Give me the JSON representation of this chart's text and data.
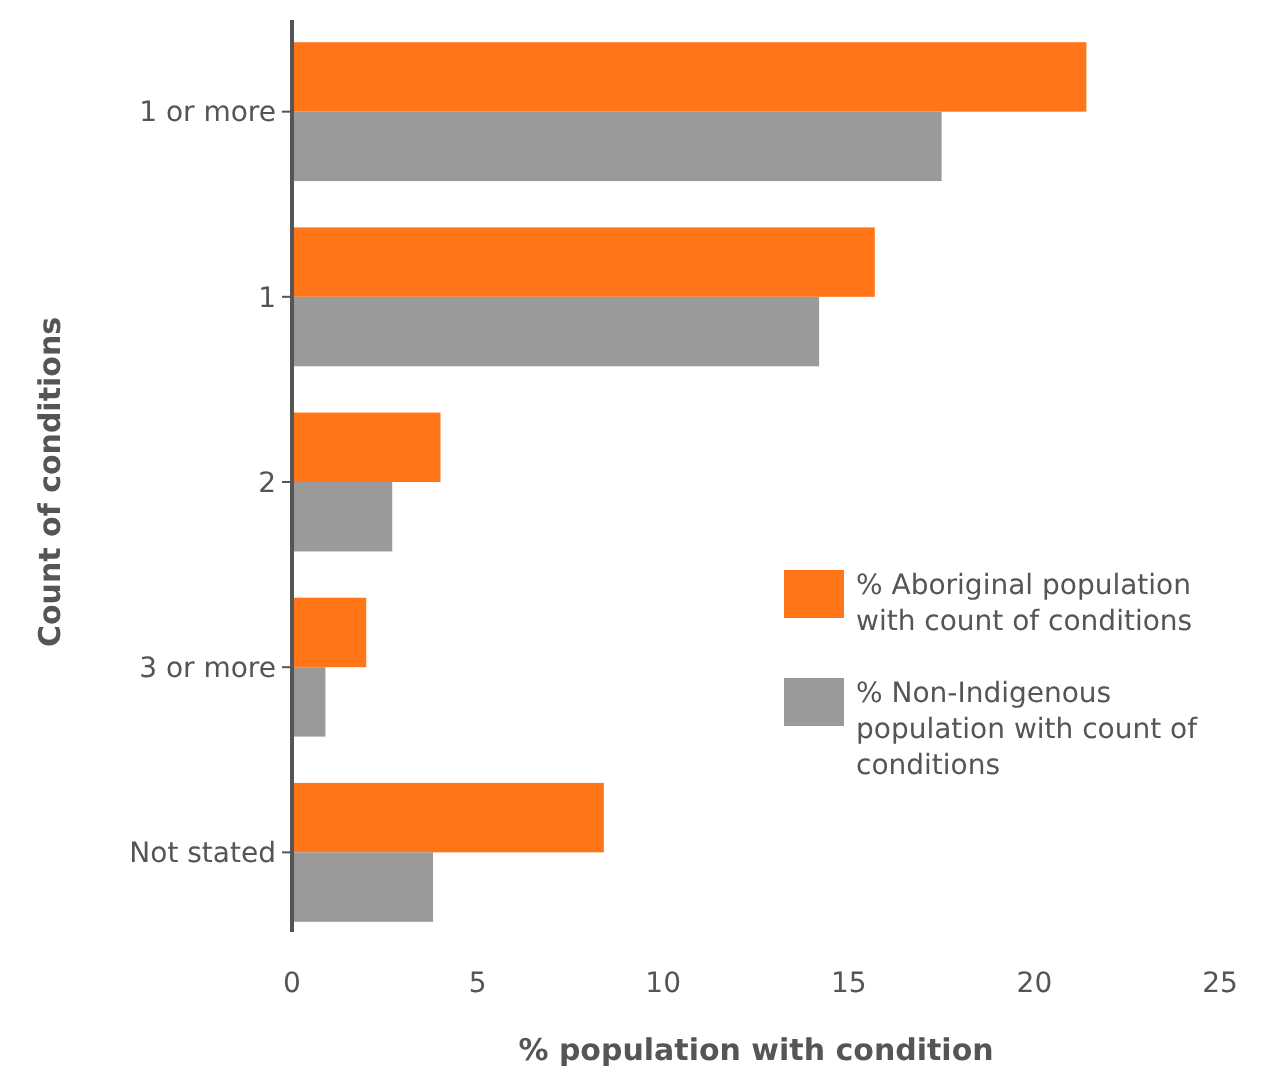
{
  "chart_data": {
    "type": "bar",
    "orientation": "horizontal",
    "xlabel": "% population with condition",
    "ylabel": "Count of conditions",
    "categories": [
      "1 or more",
      "1",
      "2",
      "3 or more",
      "Not stated"
    ],
    "series": [
      {
        "name": "% Aboriginal population with count of conditions",
        "color": "#ff7517",
        "values": [
          21.4,
          15.7,
          4.0,
          2.0,
          8.4
        ]
      },
      {
        "name": "% Non-Indigenous population with count of conditions",
        "color": "#9b999a",
        "values": [
          17.5,
          14.2,
          2.7,
          0.9,
          3.8
        ]
      }
    ],
    "xlim": [
      0,
      25
    ],
    "xticks": [
      0,
      5,
      10,
      15,
      20,
      25
    ],
    "grid": false,
    "legend": "right"
  }
}
